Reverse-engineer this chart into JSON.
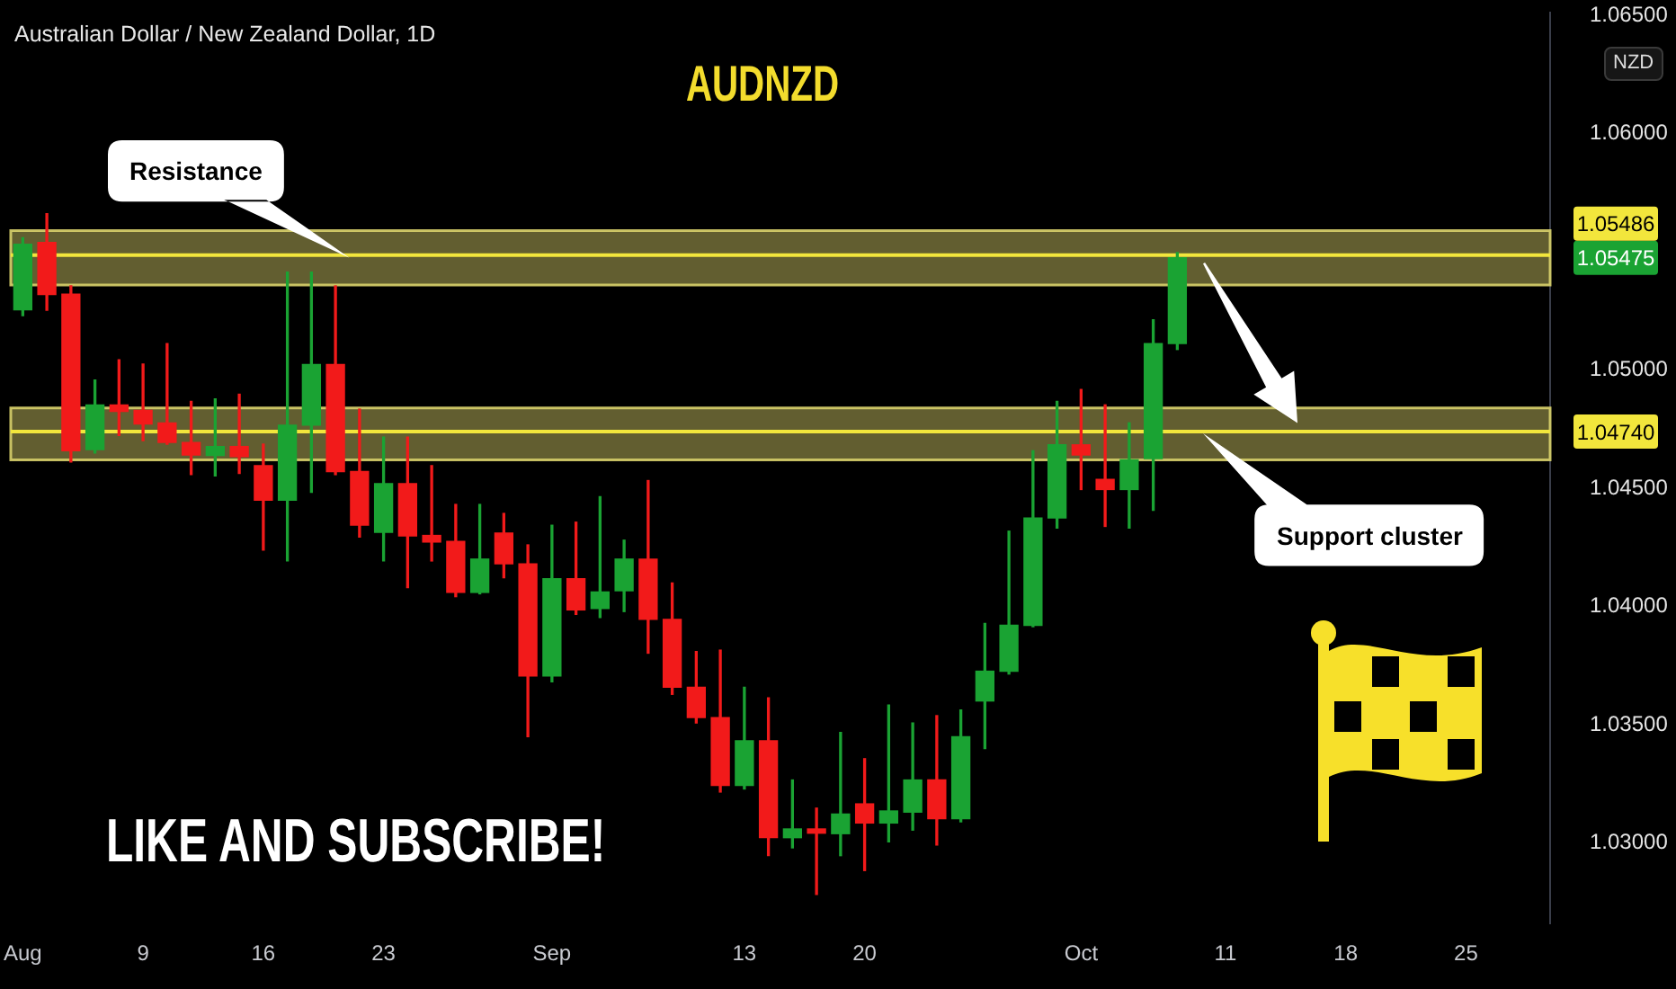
{
  "chart_data": {
    "type": "candlestick",
    "title": "AUDNZD",
    "subtitle": "Australian Dollar / New Zealand Dollar, 1D",
    "ylabel": "NZD",
    "categories": [
      "Aug",
      null,
      null,
      null,
      null,
      "9",
      null,
      null,
      null,
      null,
      "16",
      null,
      null,
      null,
      null,
      "23",
      null,
      null,
      null,
      null,
      null,
      null,
      "Sep",
      null,
      null,
      null,
      null,
      null,
      null,
      null,
      "13",
      null,
      null,
      null,
      null,
      "20",
      null,
      null,
      null,
      null,
      null,
      null,
      null,
      null,
      "Oct",
      null,
      null,
      null,
      null,
      null,
      "11",
      null,
      null,
      null,
      null,
      "18",
      null,
      null,
      null,
      null,
      "25",
      null,
      null,
      null
    ],
    "ohlc": [
      [
        1.05255,
        1.0556,
        1.0523,
        1.05532
      ],
      [
        1.0554,
        1.05661,
        1.05253,
        1.05319
      ],
      [
        1.05321,
        1.05356,
        1.04611,
        1.04659
      ],
      [
        1.04664,
        1.04958,
        1.04649,
        1.04853
      ],
      [
        1.04853,
        1.05044,
        1.04724,
        1.04825
      ],
      [
        1.0483,
        1.05026,
        1.04702,
        1.04772
      ],
      [
        1.04777,
        1.05112,
        1.04687,
        1.04694
      ],
      [
        1.04694,
        1.04868,
        1.04558,
        1.04641
      ],
      [
        1.04639,
        1.04878,
        1.04553,
        1.04677
      ],
      [
        1.04677,
        1.04898,
        1.04563,
        1.04634
      ],
      [
        1.04596,
        1.04687,
        1.04239,
        1.0445
      ],
      [
        1.0445,
        1.05414,
        1.04193,
        1.04767
      ],
      [
        1.04767,
        1.05414,
        1.04483,
        1.05024
      ],
      [
        1.05024,
        1.05356,
        1.04558,
        1.04571
      ],
      [
        1.04571,
        1.04835,
        1.04294,
        1.04344
      ],
      [
        1.04314,
        1.04717,
        1.04193,
        1.0452
      ],
      [
        1.0452,
        1.04717,
        1.0408,
        1.04299
      ],
      [
        1.04301,
        1.04596,
        1.04193,
        1.04273
      ],
      [
        1.04276,
        1.04432,
        1.04042,
        1.0406
      ],
      [
        1.0406,
        1.04432,
        1.04054,
        1.04201
      ],
      [
        1.04311,
        1.04394,
        1.04122,
        1.04181
      ],
      [
        1.04181,
        1.04261,
        1.0345,
        1.03707
      ],
      [
        1.03707,
        1.04344,
        1.03682,
        1.04118
      ],
      [
        1.04118,
        1.04357,
        1.03967,
        1.03986
      ],
      [
        1.03992,
        1.04465,
        1.03954,
        1.04062
      ],
      [
        1.04067,
        1.04281,
        1.03979,
        1.04201
      ],
      [
        1.04201,
        1.04533,
        1.03803,
        1.03946
      ],
      [
        1.03946,
        1.041,
        1.03629,
        1.03659
      ],
      [
        1.03659,
        1.0381,
        1.03508,
        1.03531
      ],
      [
        1.03531,
        1.03816,
        1.03216,
        1.03244
      ],
      [
        1.03244,
        1.03659,
        1.03229,
        1.03433
      ],
      [
        1.03433,
        1.03614,
        1.02947,
        1.03023
      ],
      [
        1.03023,
        1.03267,
        1.0298,
        1.0306
      ],
      [
        1.0306,
        1.03148,
        1.02783,
        1.03042
      ],
      [
        1.0304,
        1.03468,
        1.02947,
        1.03123
      ],
      [
        1.03166,
        1.03357,
        1.02884,
        1.03085
      ],
      [
        1.03085,
        1.03584,
        1.03005,
        1.03136
      ],
      [
        1.03131,
        1.03508,
        1.03055,
        1.03267
      ],
      [
        1.03267,
        1.03539,
        1.02992,
        1.03103
      ],
      [
        1.03103,
        1.03563,
        1.0309,
        1.0345
      ],
      [
        1.03601,
        1.03929,
        1.034,
        1.03727
      ],
      [
        1.03727,
        1.04319,
        1.03715,
        1.03921
      ],
      [
        1.03921,
        1.04659,
        1.03915,
        1.04375
      ],
      [
        1.04375,
        1.04868,
        1.04332,
        1.04684
      ],
      [
        1.04684,
        1.04918,
        1.04495,
        1.04641
      ],
      [
        1.04538,
        1.04853,
        1.04339,
        1.04495
      ],
      [
        1.04495,
        1.04777,
        1.04332,
        1.04621
      ],
      [
        1.04626,
        1.05213,
        1.04407,
        1.05112
      ],
      [
        1.05112,
        1.05497,
        1.05087,
        1.05475
      ],
      null,
      null,
      null,
      null,
      null,
      null,
      null,
      null,
      null,
      null,
      null,
      null,
      null,
      null,
      null
    ],
    "colors": [
      "#1aa333",
      "#f21a1a",
      "#f21a1a",
      "#1aa333",
      "#f21a1a",
      "#f21a1a",
      "#f21a1a",
      "#f21a1a",
      "#1aa333",
      "#f21a1a",
      "#f21a1a",
      "#1aa333",
      "#1aa333",
      "#f21a1a",
      "#f21a1a",
      "#1aa333",
      "#f21a1a",
      "#f21a1a",
      "#f21a1a",
      "#1aa333",
      "#f21a1a",
      "#f21a1a",
      "#1aa333",
      "#f21a1a",
      "#1aa333",
      "#1aa333",
      "#f21a1a",
      "#f21a1a",
      "#f21a1a",
      "#f21a1a",
      "#1aa333",
      "#f21a1a",
      "#1aa333",
      "#f21a1a",
      "#1aa333",
      "#f21a1a",
      "#1aa333",
      "#1aa333",
      "#f21a1a",
      "#1aa333",
      "#1aa333",
      "#1aa333",
      "#1aa333",
      "#1aa333",
      "#f21a1a",
      "#f21a1a",
      "#1aa333",
      "#1aa333",
      "#1aa333",
      null,
      null,
      null,
      null,
      null,
      null,
      null,
      null,
      null,
      null,
      null,
      null,
      null,
      null,
      null
    ],
    "ylim": [
      1.0266,
      1.0651
    ],
    "yticks": [
      {
        "value": 1.03,
        "label": "1.03000"
      },
      {
        "value": 1.035,
        "label": "1.03500"
      },
      {
        "value": 1.04,
        "label": "1.04000"
      },
      {
        "value": 1.045,
        "label": "1.04500"
      },
      {
        "value": 1.05,
        "label": "1.05000"
      },
      {
        "value": 1.06,
        "label": "1.06000"
      },
      {
        "value": 1.065,
        "label": "1.06500"
      }
    ],
    "ref_lines": [
      {
        "axis": "y",
        "value": 1.05486,
        "label": "1.05486",
        "color": "#f2e63c"
      },
      {
        "axis": "y",
        "value": 1.0474,
        "label": "1.04740",
        "color": "#f2e63c"
      }
    ],
    "bands": [
      {
        "axis": "y",
        "from": 1.0536,
        "to": 1.0559,
        "label": "Resistance",
        "color": "#d9d16b"
      },
      {
        "axis": "y",
        "from": 1.0462,
        "to": 1.0484,
        "label": "Support cluster",
        "color": "#d9d16b"
      }
    ],
    "annotations": [
      "1.05475",
      "LIKE AND SUBSCRIBE!"
    ]
  }
}
